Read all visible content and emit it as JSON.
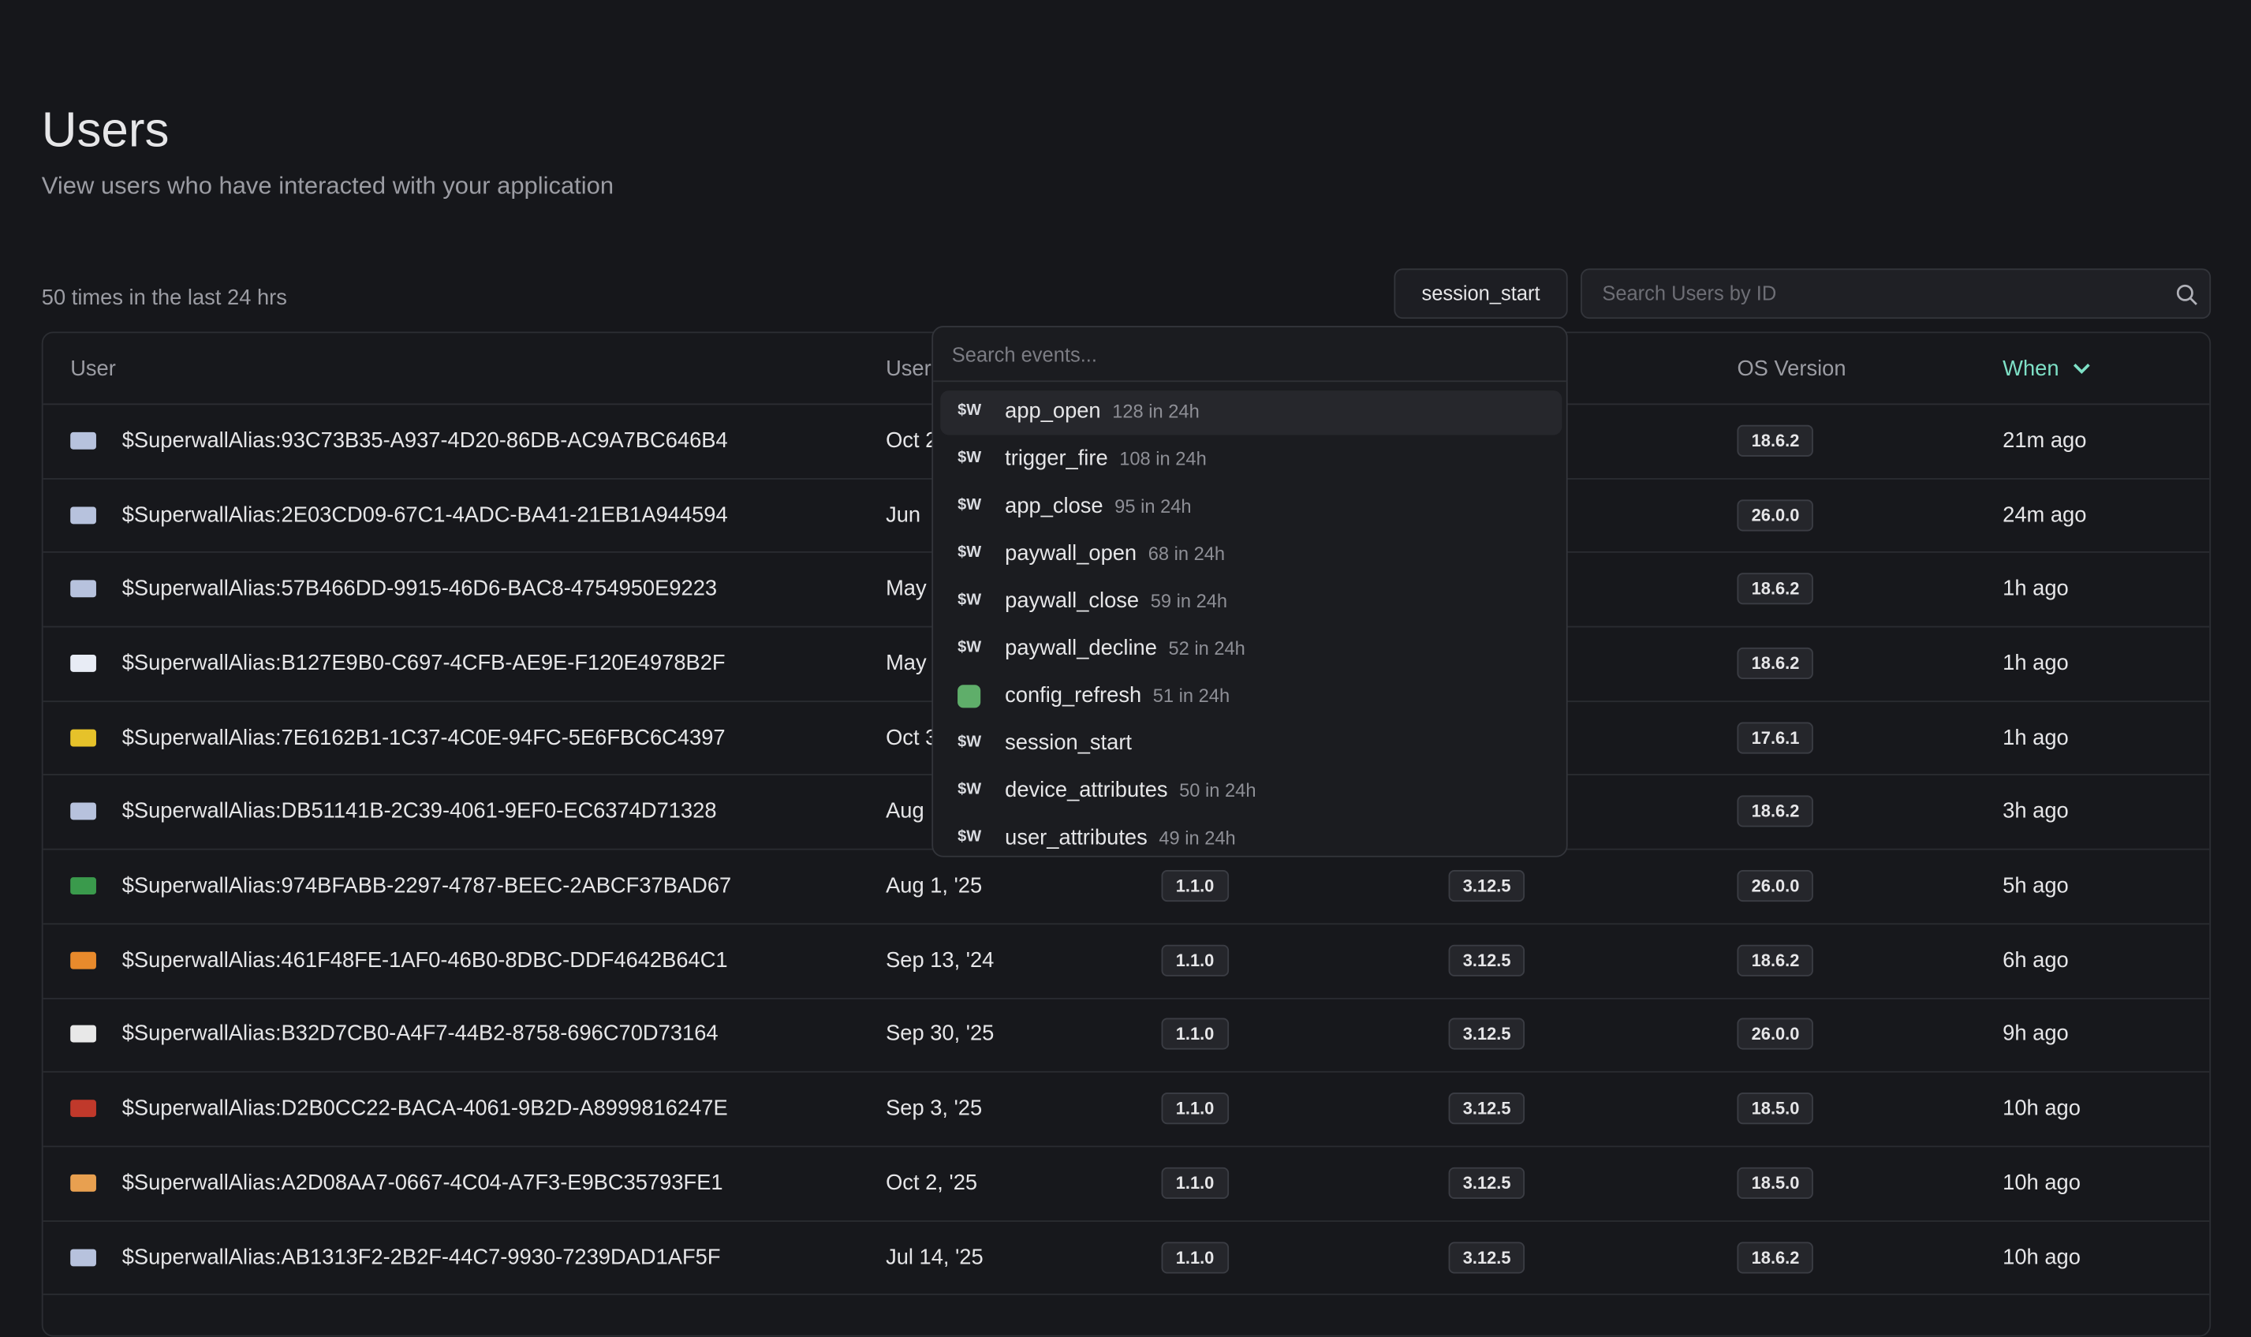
{
  "header": {
    "title": "Users",
    "subtitle": "View users who have interacted with your application"
  },
  "toolbar": {
    "summary": "50 times in the last 24 hrs",
    "event_button": "session_start",
    "search_placeholder": "Search Users by ID"
  },
  "table": {
    "columns": [
      "User",
      "User",
      null,
      null,
      "OS Version",
      "When"
    ],
    "rows": [
      [
        "$SuperwallAlias:93C73B35-A937-4D20-86DB-AC9A7BC646B4",
        "Oct 2",
        null,
        null,
        "18.6.2",
        "21m ago"
      ],
      [
        "$SuperwallAlias:2E03CD09-67C1-4ADC-BA41-21EB1A944594",
        "Jun",
        null,
        null,
        "26.0.0",
        "24m ago"
      ],
      [
        "$SuperwallAlias:57B466DD-9915-46D6-BAC8-4754950E9223",
        "May",
        null,
        null,
        "18.6.2",
        "1h ago"
      ],
      [
        "$SuperwallAlias:B127E9B0-C697-4CFB-AE9E-F120E4978B2F",
        "May",
        null,
        null,
        "18.6.2",
        "1h ago"
      ],
      [
        "$SuperwallAlias:7E6162B1-1C37-4C0E-94FC-5E6FBC6C4397",
        "Oct 3",
        null,
        null,
        "17.6.1",
        "1h ago"
      ],
      [
        "$SuperwallAlias:DB51141B-2C39-4061-9EF0-EC6374D71328",
        "Aug",
        null,
        null,
        "18.6.2",
        "3h ago"
      ],
      [
        "$SuperwallAlias:974BFABB-2297-4787-BEEC-2ABCF37BAD67",
        "Aug 1, '25",
        "1.1.0",
        "3.12.5",
        "26.0.0",
        "5h ago"
      ],
      [
        "$SuperwallAlias:461F48FE-1AF0-46B0-8DBC-DDF4642B64C1",
        "Sep 13, '24",
        "1.1.0",
        "3.12.5",
        "18.6.2",
        "6h ago"
      ],
      [
        "$SuperwallAlias:B32D7CB0-A4F7-44B2-8758-696C70D73164",
        "Sep 30, '25",
        "1.1.0",
        "3.12.5",
        "26.0.0",
        "9h ago"
      ],
      [
        "$SuperwallAlias:D2B0CC22-BACA-4061-9B2D-A8999816247E",
        "Sep 3, '25",
        "1.1.0",
        "3.12.5",
        "18.5.0",
        "10h ago"
      ],
      [
        "$SuperwallAlias:A2D08AA7-0667-4C04-A7F3-E9BC35793FE1",
        "Oct 2, '25",
        "1.1.0",
        "3.12.5",
        "18.5.0",
        "10h ago"
      ],
      [
        "$SuperwallAlias:AB1313F2-2B2F-44C7-9930-7239DAD1AF5F",
        "Jul 14, '25",
        "1.1.0",
        "3.12.5",
        "18.6.2",
        "10h ago"
      ]
    ]
  },
  "dropdown": {
    "search_placeholder": "Search events...",
    "items": [
      {
        "icon": "$W",
        "name": "app_open",
        "count": "128 in 24h"
      },
      {
        "icon": "$W",
        "name": "trigger_fire",
        "count": "108 in 24h"
      },
      {
        "icon": "$W",
        "name": "app_close",
        "count": "95 in 24h"
      },
      {
        "icon": "$W",
        "name": "paywall_open",
        "count": "68 in 24h"
      },
      {
        "icon": "$W",
        "name": "paywall_close",
        "count": "59 in 24h"
      },
      {
        "icon": "$W",
        "name": "paywall_decline",
        "count": "52 in 24h"
      },
      {
        "icon": null,
        "name": "config_refresh",
        "count": "51 in 24h"
      },
      {
        "icon": "$W",
        "name": "session_start",
        "count": null
      },
      {
        "icon": "$W",
        "name": "device_attributes",
        "count": "50 in 24h"
      },
      {
        "icon": "$W",
        "name": "user_attributes",
        "count": "49 in 24h"
      }
    ]
  }
}
